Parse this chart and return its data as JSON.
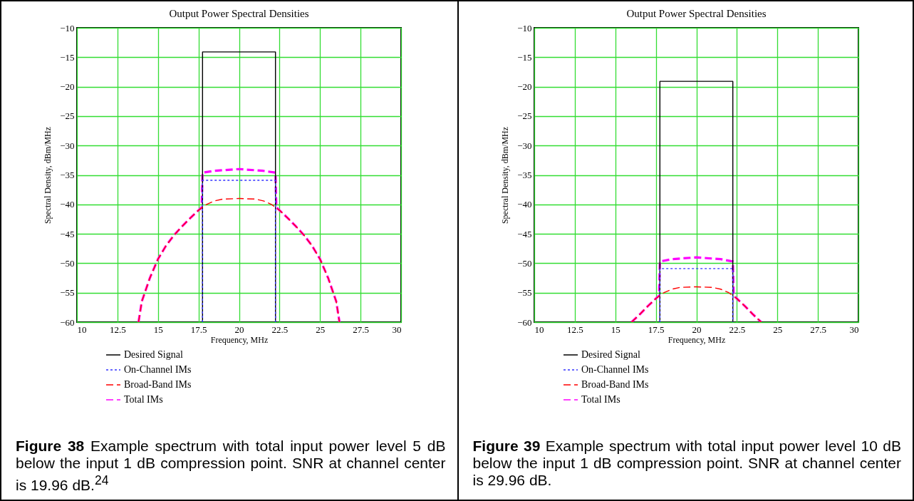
{
  "chart_data": [
    {
      "type": "line",
      "title": "Output Power Spectral Densities",
      "xlabel": "Frequency, MHz",
      "ylabel": "Spectral Density, dBm/MHz",
      "xlim": [
        10,
        30
      ],
      "ylim": [
        -60,
        -10
      ],
      "xticks": [
        10,
        12.5,
        15,
        17.5,
        20,
        22.5,
        25,
        27.5,
        30
      ],
      "yticks": [
        -60,
        -55,
        -50,
        -45,
        -40,
        -35,
        -30,
        -25,
        -20,
        -15,
        -10
      ],
      "grid": true,
      "legend": "bottom",
      "annotations": [
        "Figure 38 Example spectrum with total input power level 5 dB below the input 1 dB compression point. SNR at channel center is 19.96 dB.$^{24}$"
      ],
      "series": [
        {
          "name": "Desired Signal",
          "color": "#000000",
          "line_style": "solid",
          "x": [
            17.75,
            17.75,
            22.25,
            22.25
          ],
          "values": [
            -60,
            -14.1,
            -14.1,
            -60
          ]
        },
        {
          "name": "On-Channel IMs",
          "color": "#3333ff",
          "line_style": "dotted",
          "x": [
            17.75,
            17.75,
            22.25,
            22.25
          ],
          "values": [
            -60,
            -35.9,
            -35.9,
            -60
          ]
        },
        {
          "name": "Broad-Band IMs",
          "color": "#ff0000",
          "line_style": "dashed",
          "x": [
            13.8,
            14,
            14.5,
            15,
            15.5,
            16,
            16.5,
            17,
            17.5,
            18,
            18.5,
            19,
            20,
            21,
            21.5,
            22,
            22.5,
            23,
            23.5,
            24,
            24.5,
            25,
            25.5,
            26,
            26.2
          ],
          "values": [
            -60,
            -56.5,
            -52.5,
            -49.3,
            -47,
            -45.2,
            -43.7,
            -42.3,
            -41,
            -40,
            -39.4,
            -39.1,
            -39,
            -39.1,
            -39.4,
            -40,
            -41,
            -42.3,
            -43.7,
            -45.2,
            -47,
            -49.3,
            -52.5,
            -56.5,
            -60
          ]
        },
        {
          "name": "Total IMs",
          "color": "#ff00ff",
          "line_style": "dashed",
          "x": [
            13.8,
            14,
            14.5,
            15,
            15.5,
            16,
            16.5,
            17,
            17.5,
            17.7,
            17.75,
            18.5,
            20,
            21.5,
            22.25,
            22.3,
            22.5,
            23,
            23.5,
            24,
            24.5,
            25,
            25.5,
            26,
            26.2
          ],
          "values": [
            -60,
            -56.5,
            -52.5,
            -49.3,
            -47,
            -45.2,
            -43.7,
            -42.3,
            -41,
            -40.5,
            -34.6,
            -34.3,
            -34,
            -34.3,
            -34.6,
            -40.5,
            -41,
            -42.3,
            -43.7,
            -45.2,
            -47,
            -49.3,
            -52.5,
            -56.5,
            -60
          ]
        }
      ]
    },
    {
      "type": "line",
      "title": "Output Power Spectral Densities",
      "xlabel": "Frequency, MHz",
      "ylabel": "Spectral Density, dBm/MHz",
      "xlim": [
        10,
        30
      ],
      "ylim": [
        -60,
        -10
      ],
      "xticks": [
        10,
        12.5,
        15,
        17.5,
        20,
        22.5,
        25,
        27.5,
        30
      ],
      "yticks": [
        -60,
        -55,
        -50,
        -45,
        -40,
        -35,
        -30,
        -25,
        -20,
        -15,
        -10
      ],
      "grid": true,
      "legend": "bottom",
      "annotations": [
        "Figure 39 Example spectrum with total input power level 10 dB below the input 1 dB compression point. SNR at channel center is 29.96 dB."
      ],
      "series": [
        {
          "name": "Desired Signal",
          "color": "#000000",
          "line_style": "solid",
          "x": [
            17.75,
            17.75,
            22.25,
            22.25
          ],
          "values": [
            -60,
            -19.1,
            -19.1,
            -60
          ]
        },
        {
          "name": "On-Channel IMs",
          "color": "#3333ff",
          "line_style": "dotted",
          "x": [
            17.75,
            17.75,
            22.25,
            22.25
          ],
          "values": [
            -60,
            -50.9,
            -50.9,
            -60
          ]
        },
        {
          "name": "Broad-Band IMs",
          "color": "#ff0000",
          "line_style": "dashed",
          "x": [
            16,
            16.5,
            17,
            17.5,
            18,
            18.5,
            19,
            20,
            21,
            21.5,
            22,
            22.5,
            23,
            23.5,
            24
          ],
          "values": [
            -60,
            -58.7,
            -57.3,
            -56,
            -55,
            -54.4,
            -54.1,
            -54,
            -54.1,
            -54.4,
            -55,
            -56,
            -57.3,
            -58.7,
            -60
          ]
        },
        {
          "name": "Total IMs",
          "color": "#ff00ff",
          "line_style": "dashed",
          "x": [
            16,
            16.5,
            17,
            17.5,
            17.7,
            17.75,
            18.5,
            20,
            21.5,
            22.25,
            22.3,
            22.5,
            23,
            23.5,
            24
          ],
          "values": [
            -60,
            -58.7,
            -57.3,
            -56,
            -55.5,
            -49.7,
            -49.3,
            -49,
            -49.3,
            -49.7,
            -55.5,
            -56,
            -57.3,
            -58.7,
            -60
          ]
        }
      ]
    }
  ]
}
